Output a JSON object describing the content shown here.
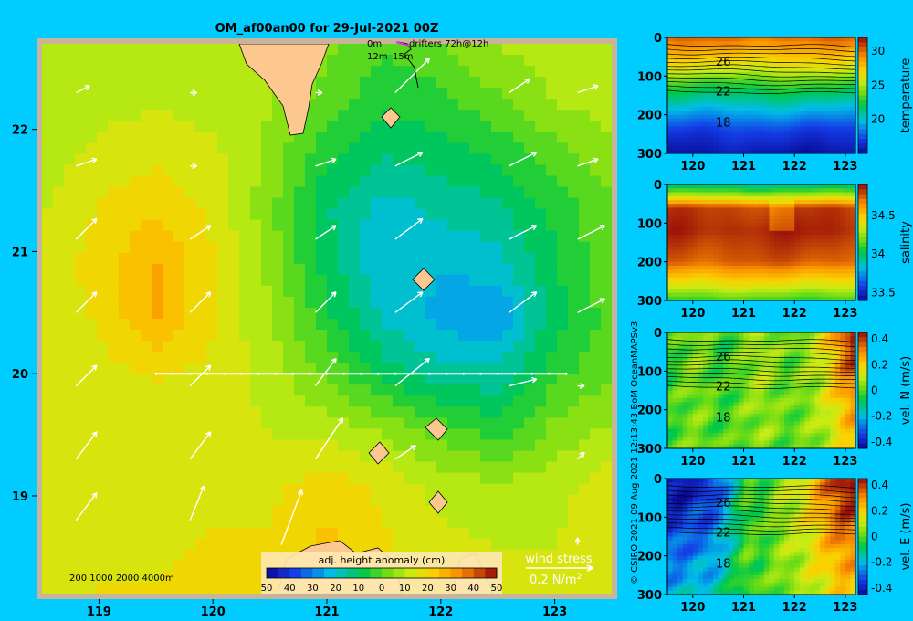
{
  "title": "OM_af00an00 for 29-Jul-2021 00Z",
  "credit": "© CSIRO 2021   09 Aug 2021 12:13:43 BoM OceanMAPSv3",
  "map": {
    "type": "heatmap",
    "x_ticks": [
      "119",
      "120",
      "121",
      "122",
      "123"
    ],
    "y_ticks": [
      "22",
      "21",
      "20",
      "19"
    ],
    "xlim": [
      118.5,
      123.5
    ],
    "ylim": [
      18.2,
      22.7
    ],
    "colorbar_title": "adj. height anomaly (cm)",
    "colorbar_ticks": [
      "-50",
      "-40",
      "-30",
      "-20",
      "-10",
      "0",
      "10",
      "20",
      "30",
      "40",
      "50"
    ],
    "colorbar_range": [
      -50,
      50
    ],
    "depth_legend": "200  1000  2000  4000m",
    "drifter_legend": {
      "line1": "0m",
      "line2": "12m",
      "line3": "15m",
      "label": "drifters 72h@12h"
    },
    "wind_stress_label": "wind stress",
    "wind_stress_value": "0.2 N/m",
    "wind_stress_sup": "2",
    "section_line": {
      "lon": [
        119.5,
        123.1
      ],
      "lat": [
        20.0,
        20.0
      ]
    },
    "anomaly_field": {
      "lon": [
        118.5,
        119.0,
        119.5,
        120.0,
        120.5,
        121.0,
        121.5,
        122.0,
        122.5,
        123.0,
        123.5
      ],
      "lat": [
        22.7,
        22.25,
        21.8,
        21.35,
        20.9,
        20.45,
        20.0,
        19.55,
        19.1,
        18.65,
        18.2
      ],
      "values_cm": [
        [
          12,
          8,
          8,
          8,
          8,
          4,
          -2,
          2,
          8,
          10,
          10
        ],
        [
          8,
          10,
          12,
          10,
          8,
          0,
          -6,
          -4,
          2,
          8,
          10
        ],
        [
          10,
          14,
          16,
          14,
          6,
          -6,
          -12,
          -10,
          -6,
          0,
          6
        ],
        [
          12,
          18,
          22,
          16,
          4,
          -12,
          -20,
          -16,
          -14,
          -6,
          2
        ],
        [
          14,
          20,
          28,
          18,
          6,
          -10,
          -22,
          -22,
          -20,
          -8,
          2
        ],
        [
          14,
          18,
          28,
          18,
          8,
          -6,
          -18,
          -24,
          -28,
          -10,
          0
        ],
        [
          14,
          16,
          18,
          16,
          10,
          2,
          -10,
          -16,
          -16,
          -4,
          2
        ],
        [
          14,
          16,
          14,
          16,
          12,
          10,
          6,
          0,
          -6,
          4,
          8
        ],
        [
          14,
          16,
          16,
          14,
          16,
          20,
          16,
          10,
          8,
          10,
          16
        ],
        [
          14,
          16,
          16,
          18,
          18,
          24,
          18,
          14,
          12,
          12,
          18
        ],
        [
          14,
          18,
          18,
          20,
          20,
          20,
          18,
          16,
          14,
          14,
          16
        ]
      ]
    },
    "wind_vectors": [
      {
        "lon": 118.8,
        "lat": 22.3,
        "u": 0.2,
        "v": 0.1
      },
      {
        "lon": 119.8,
        "lat": 22.3,
        "u": 0.1,
        "v": 0.0
      },
      {
        "lon": 120.9,
        "lat": 22.3,
        "u": 0.1,
        "v": 0.0
      },
      {
        "lon": 121.6,
        "lat": 22.3,
        "u": 0.5,
        "v": 0.5
      },
      {
        "lon": 122.6,
        "lat": 22.3,
        "u": 0.3,
        "v": 0.2
      },
      {
        "lon": 123.2,
        "lat": 22.3,
        "u": 0.3,
        "v": 0.1
      },
      {
        "lon": 118.8,
        "lat": 21.7,
        "u": 0.3,
        "v": 0.1
      },
      {
        "lon": 119.8,
        "lat": 21.7,
        "u": 0.1,
        "v": 0.0
      },
      {
        "lon": 120.9,
        "lat": 21.7,
        "u": 0.3,
        "v": 0.1
      },
      {
        "lon": 121.6,
        "lat": 21.7,
        "u": 0.4,
        "v": 0.2
      },
      {
        "lon": 122.6,
        "lat": 21.7,
        "u": 0.4,
        "v": 0.2
      },
      {
        "lon": 123.2,
        "lat": 21.7,
        "u": 0.3,
        "v": 0.1
      },
      {
        "lon": 118.8,
        "lat": 21.1,
        "u": 0.3,
        "v": 0.3
      },
      {
        "lon": 119.8,
        "lat": 21.1,
        "u": 0.3,
        "v": 0.2
      },
      {
        "lon": 120.9,
        "lat": 21.1,
        "u": 0.3,
        "v": 0.2
      },
      {
        "lon": 121.6,
        "lat": 21.1,
        "u": 0.4,
        "v": 0.3
      },
      {
        "lon": 122.6,
        "lat": 21.1,
        "u": 0.4,
        "v": 0.2
      },
      {
        "lon": 123.2,
        "lat": 21.1,
        "u": 0.4,
        "v": 0.2
      },
      {
        "lon": 118.8,
        "lat": 20.5,
        "u": 0.3,
        "v": 0.3
      },
      {
        "lon": 119.8,
        "lat": 20.5,
        "u": 0.3,
        "v": 0.3
      },
      {
        "lon": 120.9,
        "lat": 20.5,
        "u": 0.3,
        "v": 0.3
      },
      {
        "lon": 121.6,
        "lat": 20.5,
        "u": 0.4,
        "v": 0.3
      },
      {
        "lon": 122.6,
        "lat": 20.5,
        "u": 0.4,
        "v": 0.3
      },
      {
        "lon": 123.2,
        "lat": 20.5,
        "u": 0.4,
        "v": 0.2
      },
      {
        "lon": 118.8,
        "lat": 19.9,
        "u": 0.3,
        "v": 0.3
      },
      {
        "lon": 119.8,
        "lat": 19.9,
        "u": 0.3,
        "v": 0.3
      },
      {
        "lon": 120.9,
        "lat": 19.9,
        "u": 0.3,
        "v": 0.4
      },
      {
        "lon": 121.6,
        "lat": 19.9,
        "u": 0.5,
        "v": 0.4
      },
      {
        "lon": 122.6,
        "lat": 19.9,
        "u": 0.4,
        "v": 0.1
      },
      {
        "lon": 123.2,
        "lat": 19.9,
        "u": 0.1,
        "v": 0.0
      },
      {
        "lon": 118.8,
        "lat": 19.3,
        "u": 0.3,
        "v": 0.4
      },
      {
        "lon": 119.8,
        "lat": 19.3,
        "u": 0.3,
        "v": 0.4
      },
      {
        "lon": 120.9,
        "lat": 19.3,
        "u": 0.4,
        "v": 0.6
      },
      {
        "lon": 121.6,
        "lat": 19.3,
        "u": 0.3,
        "v": 0.2
      },
      {
        "lon": 122.6,
        "lat": 19.3,
        "u": 0.0,
        "v": 0.0
      },
      {
        "lon": 123.2,
        "lat": 19.3,
        "u": 0.1,
        "v": 0.1
      },
      {
        "lon": 118.8,
        "lat": 18.8,
        "u": 0.3,
        "v": 0.4
      },
      {
        "lon": 119.8,
        "lat": 18.8,
        "u": 0.2,
        "v": 0.5
      },
      {
        "lon": 120.6,
        "lat": 18.6,
        "u": 0.3,
        "v": 0.8
      },
      {
        "lon": 123.2,
        "lat": 18.6,
        "u": 0.0,
        "v": 0.1
      }
    ]
  },
  "sections": [
    {
      "id": "temperature",
      "type": "heatmap",
      "ylabel": "temperature",
      "y_ticks": [
        "0",
        "100",
        "200",
        "300"
      ],
      "x_ticks": [
        "120",
        "121",
        "122",
        "123"
      ],
      "xlim": [
        119.5,
        123.2
      ],
      "ylim": [
        300,
        0
      ],
      "colorbar_ticks": [
        "30",
        "25",
        "20"
      ],
      "colorbar_range": [
        15,
        32
      ],
      "contour_labels": [
        {
          "text": "26",
          "lon": 120.6,
          "depth": 62
        },
        {
          "text": "22",
          "lon": 120.6,
          "depth": 138
        },
        {
          "text": "18",
          "lon": 120.6,
          "depth": 218
        }
      ],
      "columns": 37,
      "rows": 30,
      "depths": [
        0,
        40,
        80,
        120,
        160,
        200,
        240,
        300
      ],
      "values": [
        30,
        28,
        26,
        23,
        21,
        19,
        17,
        15.5
      ]
    },
    {
      "id": "salinity",
      "type": "heatmap",
      "ylabel": "salinity",
      "y_ticks": [
        "0",
        "100",
        "200",
        "300"
      ],
      "x_ticks": [
        "120",
        "121",
        "122",
        "123"
      ],
      "xlim": [
        119.5,
        123.2
      ],
      "ylim": [
        300,
        0
      ],
      "colorbar_ticks": [
        "34.5",
        "34",
        "33.5"
      ],
      "colorbar_range": [
        33.4,
        34.9
      ],
      "contour_labels": [],
      "columns": 37,
      "rows": 30,
      "depths": [
        0,
        30,
        60,
        120,
        200,
        260,
        300
      ],
      "values": [
        33.9,
        34.3,
        34.8,
        34.85,
        34.75,
        34.4,
        34.1
      ]
    },
    {
      "id": "vel_n",
      "type": "heatmap",
      "ylabel": "vel. N (m/s)",
      "y_ticks": [
        "0",
        "100",
        "200",
        "300"
      ],
      "x_ticks": [
        "120",
        "121",
        "122",
        "123"
      ],
      "xlim": [
        119.5,
        123.2
      ],
      "ylim": [
        300,
        0
      ],
      "colorbar_ticks": [
        "0.4",
        "0.2",
        "0",
        "-0.2",
        "-0.4"
      ],
      "colorbar_range": [
        -0.45,
        0.45
      ],
      "contour_labels": [
        {
          "text": "26",
          "lon": 120.6,
          "depth": 62
        },
        {
          "text": "22",
          "lon": 120.6,
          "depth": 138
        },
        {
          "text": "18",
          "lon": 120.6,
          "depth": 218
        }
      ],
      "columns": 37,
      "rows": 30,
      "lon_profile": [
        -0.05,
        0.0,
        0.05,
        0.02,
        -0.05,
        0.0,
        0.05,
        0.1,
        0.05,
        0.0,
        0.05,
        0.1,
        0.2,
        0.35,
        0.45
      ],
      "values": []
    },
    {
      "id": "vel_e",
      "type": "heatmap",
      "ylabel": "vel. E (m/s)",
      "y_ticks": [
        "0",
        "100",
        "200",
        "300"
      ],
      "x_ticks": [
        "120",
        "121",
        "122",
        "123"
      ],
      "xlim": [
        119.5,
        123.2
      ],
      "ylim": [
        300,
        0
      ],
      "colorbar_ticks": [
        "0.4",
        "0.2",
        "0",
        "-0.2",
        "-0.4"
      ],
      "colorbar_range": [
        -0.45,
        0.45
      ],
      "contour_labels": [
        {
          "text": "26",
          "lon": 120.6,
          "depth": 62
        },
        {
          "text": "22",
          "lon": 120.6,
          "depth": 138
        },
        {
          "text": "18",
          "lon": 120.6,
          "depth": 218
        }
      ],
      "columns": 37,
      "rows": 30,
      "lon_profile": [
        -0.45,
        -0.45,
        -0.4,
        -0.4,
        -0.3,
        -0.15,
        0.0,
        -0.05,
        0.05,
        0.1,
        0.15,
        0.25,
        0.35,
        0.45,
        0.45
      ],
      "values": []
    }
  ]
}
